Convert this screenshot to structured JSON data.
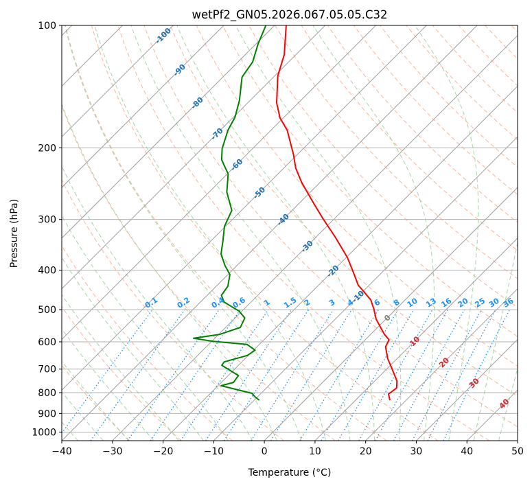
{
  "chart_data": {
    "type": "line",
    "subtype": "skew-t log-p",
    "title": "wetPf2_GN05.2026.067.05.05.C32",
    "xlabel": "Temperature (°C)",
    "ylabel": "Pressure (hPa)",
    "xlim": [
      -40,
      50
    ],
    "ylim": [
      1050,
      100
    ],
    "xticks": [
      "−40",
      "−30",
      "−20",
      "−10",
      "0",
      "10",
      "20",
      "30",
      "40",
      "50"
    ],
    "xtick_values": [
      -40,
      -30,
      -20,
      -10,
      0,
      10,
      20,
      30,
      40,
      50
    ],
    "yticks": [
      "100",
      "200",
      "300",
      "400",
      "500",
      "600",
      "700",
      "800",
      "900",
      "1000"
    ],
    "ytick_values": [
      100,
      200,
      300,
      400,
      500,
      600,
      700,
      800,
      900,
      1000
    ],
    "grid": true,
    "series": [
      {
        "name": "Temperature",
        "color": "#ff0000",
        "points": [
          [
            100,
            -77.7
          ],
          [
            118,
            -72.3
          ],
          [
            133,
            -69.4
          ],
          [
            155,
            -64.3
          ],
          [
            169,
            -60.6
          ],
          [
            181,
            -56.8
          ],
          [
            208,
            -50.7
          ],
          [
            224,
            -47.7
          ],
          [
            243,
            -43.7
          ],
          [
            273,
            -37.3
          ],
          [
            298,
            -32.4
          ],
          [
            331,
            -26.3
          ],
          [
            372,
            -19.8
          ],
          [
            402,
            -16.0
          ],
          [
            435,
            -12.2
          ],
          [
            473,
            -6.8
          ],
          [
            498,
            -4.4
          ],
          [
            528,
            -1.9
          ],
          [
            575,
            2.7
          ],
          [
            593,
            4.7
          ],
          [
            617,
            5.4
          ],
          [
            659,
            8.1
          ],
          [
            693,
            10.6
          ],
          [
            749,
            14.4
          ],
          [
            779,
            15.7
          ],
          [
            806,
            15.3
          ],
          [
            835,
            16.8
          ]
        ]
      },
      {
        "name": "Dewpoint",
        "color": "#008000",
        "points": [
          [
            100,
            -81.7
          ],
          [
            111,
            -79.6
          ],
          [
            123,
            -77.1
          ],
          [
            134,
            -76.2
          ],
          [
            153,
            -72.1
          ],
          [
            168,
            -69.7
          ],
          [
            181,
            -68.5
          ],
          [
            201,
            -66.0
          ],
          [
            214,
            -63.9
          ],
          [
            232,
            -59.8
          ],
          [
            257,
            -56.5
          ],
          [
            285,
            -51.9
          ],
          [
            312,
            -50.2
          ],
          [
            338,
            -47.7
          ],
          [
            365,
            -45.4
          ],
          [
            390,
            -42.3
          ],
          [
            410,
            -39.6
          ],
          [
            438,
            -37.7
          ],
          [
            461,
            -37.2
          ],
          [
            479,
            -35.3
          ],
          [
            504,
            -30.6
          ],
          [
            524,
            -28.1
          ],
          [
            553,
            -27.1
          ],
          [
            575,
            -29.8
          ],
          [
            588,
            -34.2
          ],
          [
            598,
            -29.8
          ],
          [
            609,
            -22.4
          ],
          [
            629,
            -19.7
          ],
          [
            648,
            -20.2
          ],
          [
            672,
            -23.5
          ],
          [
            685,
            -23.3
          ],
          [
            726,
            -18.0
          ],
          [
            755,
            -17.6
          ],
          [
            769,
            -19.4
          ],
          [
            803,
            -11.8
          ],
          [
            819,
            -10.5
          ],
          [
            835,
            -9.0
          ]
        ]
      }
    ],
    "mixing_ratio_labels": [
      "0.1",
      "0.2",
      "0.4",
      "0.6",
      "1",
      "1.5",
      "2",
      "3",
      "4",
      "6",
      "8",
      "10",
      "13",
      "16",
      "20",
      "25",
      "30",
      "36"
    ],
    "mixing_ratio_values_gkg": [
      0.1,
      0.2,
      0.4,
      0.6,
      1,
      1.5,
      2,
      3,
      4,
      6,
      8,
      10,
      13,
      16,
      20,
      25,
      30,
      36
    ],
    "isotherm_labels": [
      "-100",
      "-90",
      "-80",
      "-70",
      "-60",
      "-50",
      "-40",
      "-30",
      "-20",
      "-10",
      "0",
      "10",
      "20",
      "30",
      "40"
    ],
    "isotherm_label_values": [
      -100,
      -90,
      -80,
      -70,
      -60,
      -50,
      -40,
      -30,
      -20,
      -10,
      0,
      10,
      20,
      30,
      40
    ],
    "colors": {
      "isotherm": "#a0a0a0",
      "dry_adiabat": "#f4a582",
      "moist_adiabat": "#9fd19f",
      "mixing_ratio": "#1e90ff",
      "label_negative": "#1f6fb4",
      "label_zero": "#808080",
      "label_positive": "#d62728"
    }
  }
}
